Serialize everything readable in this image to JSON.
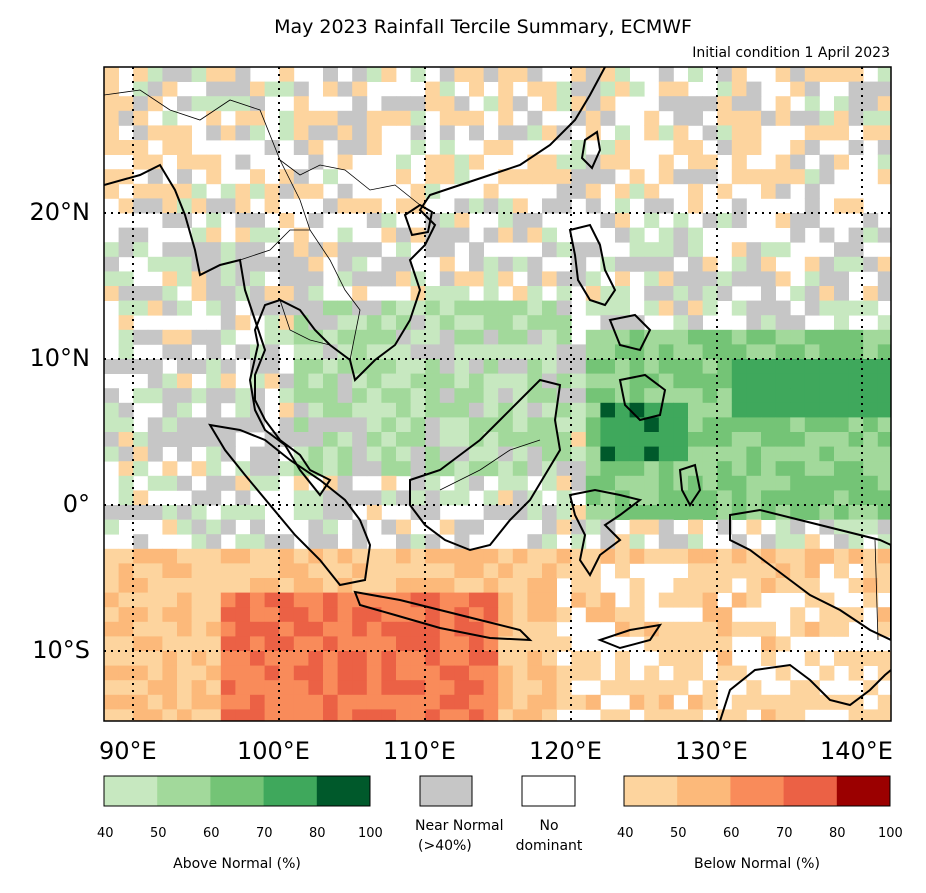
{
  "title": "May 2023 Rainfall Tercile Summary, ECMWF",
  "subtitle": "Initial condition 1 April 2023",
  "lat_labels": [
    "20°N",
    "10°N",
    "0°",
    "10°S"
  ],
  "lon_labels": [
    "90°E",
    "100°E",
    "110°E",
    "120°E",
    "130°E",
    "140°E"
  ],
  "colorbars": {
    "above": {
      "label": "Above Normal (%)",
      "ticks": [
        "40",
        "50",
        "60",
        "70",
        "80",
        "100"
      ],
      "colors": [
        "#c7e8c0",
        "#a2d99b",
        "#74c476",
        "#3fa85c",
        "#00592b"
      ]
    },
    "near_normal": {
      "label_line1": "Near Normal",
      "label_line2": "(>40%)",
      "color": "#c6c6c6"
    },
    "no_dominant": {
      "label_line1": "No",
      "label_line2": "dominant",
      "color": "#ffffff"
    },
    "below": {
      "label": "Below Normal (%)",
      "ticks": [
        "40",
        "50",
        "60",
        "70",
        "80",
        "100"
      ],
      "colors": [
        "#fdd49e",
        "#fcb97a",
        "#f98b5a",
        "#eb6145",
        "#9b0000"
      ]
    }
  }
}
